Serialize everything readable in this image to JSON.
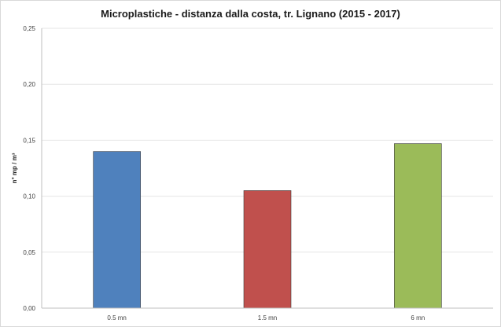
{
  "chart_data": {
    "type": "bar",
    "title": "Microplastiche - distanza dalla costa, tr. Lignano (2015 - 2017)",
    "xlabel": "",
    "ylabel": "n° mp / m³",
    "categories": [
      "0.5 mn",
      "1.5 mn",
      "6 mn"
    ],
    "values": [
      0.14,
      0.105,
      0.147
    ],
    "colors": [
      "#4f81bd",
      "#c0504d",
      "#9bbb59"
    ],
    "ylim": [
      0,
      0.25
    ],
    "yticks": [
      0.0,
      0.05,
      0.1,
      0.15,
      0.2,
      0.25
    ],
    "ytick_labels": [
      "0,00",
      "0,05",
      "0,10",
      "0,15",
      "0,20",
      "0,25"
    ],
    "grid": true,
    "legend": "none"
  }
}
